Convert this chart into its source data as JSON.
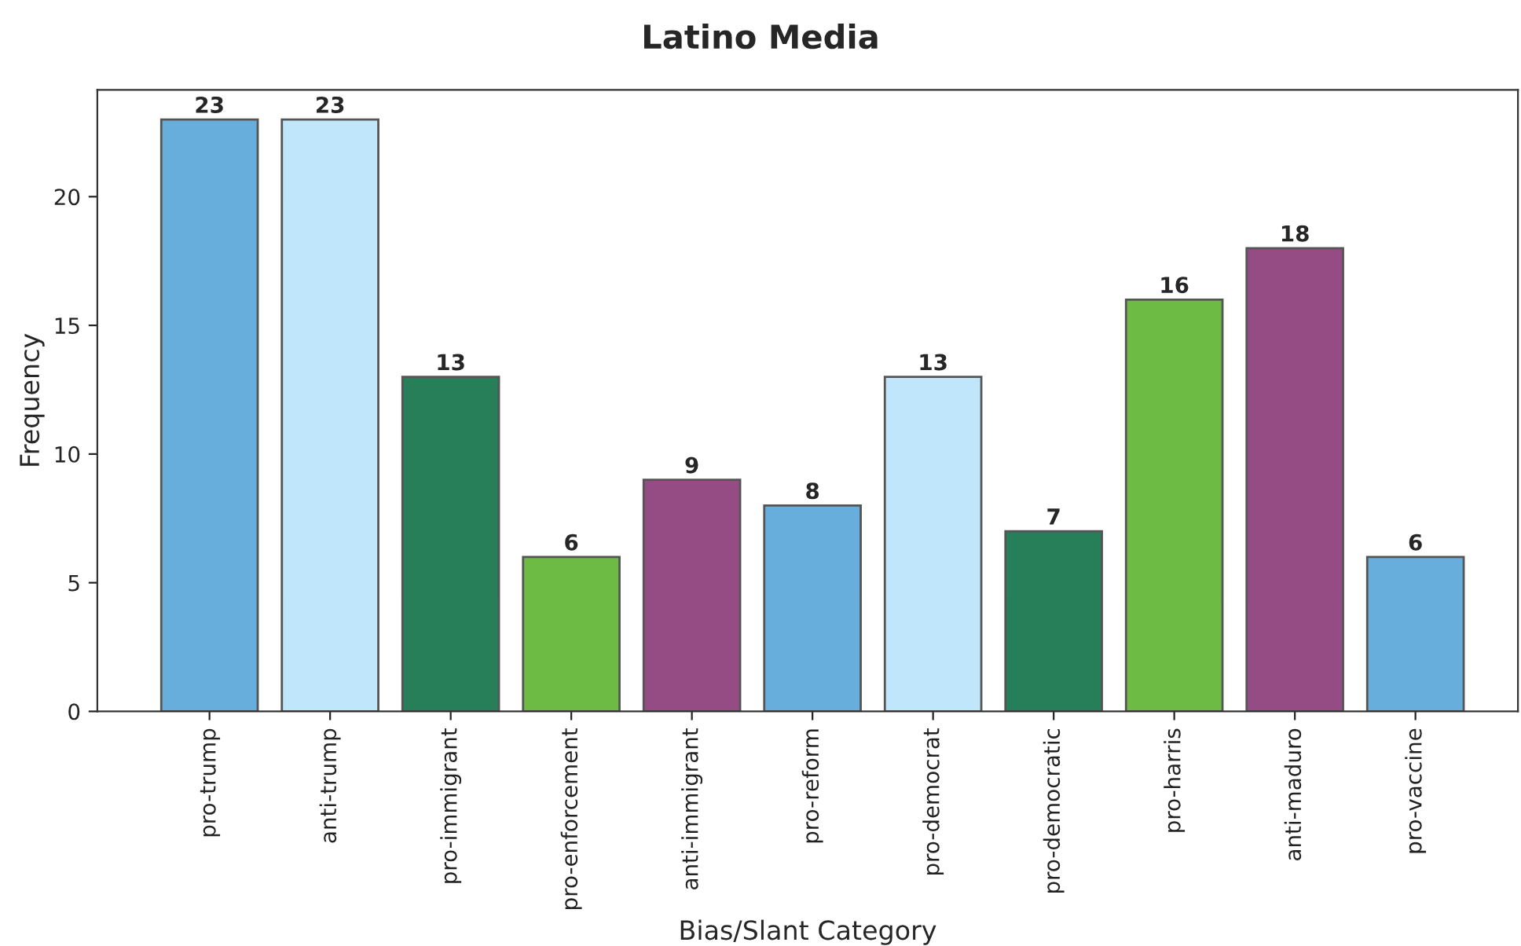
{
  "chart_data": {
    "type": "bar",
    "title": "Latino Media",
    "xlabel": "Bias/Slant Category",
    "ylabel": "Frequency",
    "categories": [
      "pro-trump",
      "anti-trump",
      "pro-immigrant",
      "pro-enforcement",
      "anti-immigrant",
      "pro-reform",
      "pro-democrat",
      "pro-democratic",
      "pro-harris",
      "anti-maduro",
      "pro-vaccine"
    ],
    "values": [
      23,
      23,
      13,
      6,
      9,
      8,
      13,
      7,
      16,
      18,
      6
    ],
    "colors": [
      "#67aedc",
      "#c0e6fb",
      "#267f58",
      "#6dbb45",
      "#954b84",
      "#67aedc",
      "#c0e6fb",
      "#267f58",
      "#6dbb45",
      "#954b84",
      "#67aedc"
    ],
    "ylim": [
      0,
      24.15
    ],
    "yticks": [
      0,
      5,
      10,
      15,
      20
    ],
    "data_labels": true,
    "grid": false,
    "legend": false
  }
}
